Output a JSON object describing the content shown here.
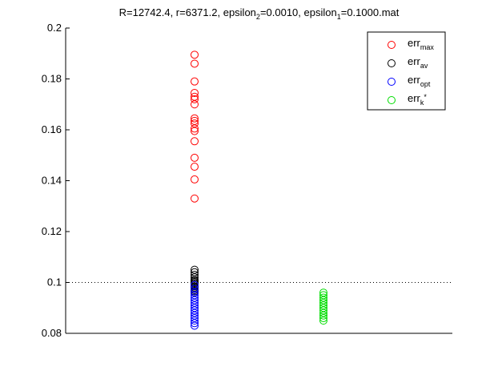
{
  "chart_data": {
    "type": "scatter",
    "title": {
      "parts": [
        {
          "text": "R=12742.4, r=6371.2, epsilon"
        },
        {
          "text": "2",
          "sub": true
        },
        {
          "text": "=0.0010, epsilon"
        },
        {
          "text": "1",
          "sub": true
        },
        {
          "text": "=0.1000.mat"
        }
      ]
    },
    "xlabel": "",
    "ylabel": "",
    "ylim": [
      0.08,
      0.2
    ],
    "xlim": [
      0,
      3
    ],
    "yticks": [
      0.08,
      0.1,
      0.12,
      0.14,
      0.16,
      0.18,
      0.2
    ],
    "ytick_labels": [
      "0.08",
      "0.1",
      "0.12",
      "0.14",
      "0.16",
      "0.18",
      "0.2"
    ],
    "grid": false,
    "legend_position": "top-right",
    "reference_line": {
      "y": 0.1,
      "style": "dotted"
    },
    "series": [
      {
        "name": "err_max",
        "legend_label": {
          "main": "err",
          "sub": "max"
        },
        "color": "#ff0000",
        "x": 1,
        "values": [
          0.1895,
          0.186,
          0.179,
          0.1745,
          0.173,
          0.172,
          0.17,
          0.1645,
          0.1635,
          0.1625,
          0.1605,
          0.1595,
          0.1555,
          0.149,
          0.1455,
          0.1405,
          0.133
        ]
      },
      {
        "name": "err_av",
        "legend_label": {
          "main": "err",
          "sub": "av"
        },
        "color": "#000000",
        "x": 1,
        "values": [
          0.105,
          0.104,
          0.103,
          0.102,
          0.101,
          0.1005,
          0.1,
          0.0995,
          0.099,
          0.0985,
          0.098,
          0.0975,
          0.097,
          0.0965,
          0.096
        ]
      },
      {
        "name": "err_opt",
        "legend_label": {
          "main": "err",
          "sub": "opt"
        },
        "color": "#0000ff",
        "x": 1,
        "values": [
          0.099,
          0.0975,
          0.096,
          0.095,
          0.094,
          0.093,
          0.092,
          0.091,
          0.09,
          0.089,
          0.088,
          0.087,
          0.086,
          0.085,
          0.084,
          0.083
        ]
      },
      {
        "name": "err_k*",
        "legend_label": {
          "main": "err",
          "sub": "k",
          "sup": "*"
        },
        "color": "#00dd00",
        "x": 2,
        "values": [
          0.096,
          0.095,
          0.094,
          0.093,
          0.092,
          0.091,
          0.09,
          0.089,
          0.088,
          0.087,
          0.086,
          0.085
        ]
      }
    ]
  }
}
